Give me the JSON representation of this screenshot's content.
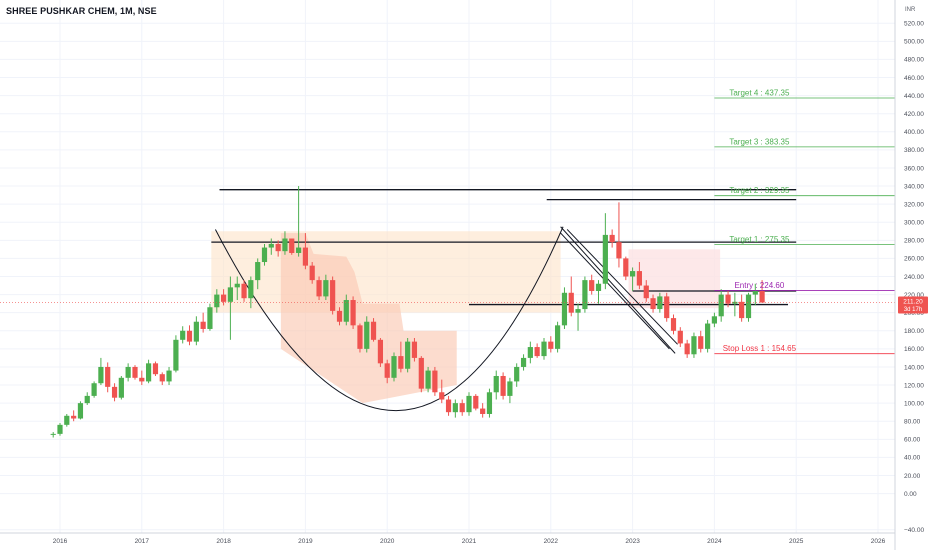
{
  "header": {
    "title": "SHREE PUSHKAR CHEM, 1M, NSE",
    "currency": "INR"
  },
  "chart_data": {
    "type": "candlestick",
    "title": "SHREE PUSHKAR CHEM, 1M, NSE",
    "ylim": [
      -48,
      528
    ],
    "xlim": [
      2015.6,
      2026.35
    ],
    "y_ticks": [
      "520.00",
      "500.00",
      "480.00",
      "460.00",
      "440.00",
      "420.00",
      "400.00",
      "380.00",
      "360.00",
      "340.00",
      "320.00",
      "300.00",
      "280.00",
      "260.00",
      "240.00",
      "220.00",
      "200.00",
      "180.00",
      "160.00",
      "140.00",
      "120.00",
      "100.00",
      "80.00",
      "60.00",
      "40.00",
      "20.00",
      "0.00",
      "−40.00"
    ],
    "x_ticks": [
      "2016",
      "2017",
      "2018",
      "2019",
      "2020",
      "2021",
      "2022",
      "2023",
      "2024",
      "2025",
      "2026"
    ],
    "last_price": {
      "price_label": "211.20",
      "countdown": "3d 17h",
      "value": 211.2
    },
    "levels": [
      {
        "label": "Target 4 : 437.35",
        "value": 437.35
      },
      {
        "label": "Target 3 : 383.35",
        "value": 383.35
      },
      {
        "label": "Target 2 : 329.35",
        "value": 329.35
      },
      {
        "label": "Target 1 : 275.35",
        "value": 275.35
      },
      {
        "label": "Entry : 224.60",
        "value": 224.6
      },
      {
        "label": "Stop Loss 1 : 154.65",
        "value": 154.65
      }
    ],
    "candles": [
      [
        2015.917,
        65,
        68,
        62,
        66
      ],
      [
        2016.0,
        66,
        78,
        64,
        76
      ],
      [
        2016.083,
        76,
        88,
        74,
        86
      ],
      [
        2016.167,
        86,
        92,
        80,
        83
      ],
      [
        2016.25,
        83,
        102,
        82,
        100
      ],
      [
        2016.333,
        100,
        112,
        98,
        108
      ],
      [
        2016.417,
        108,
        124,
        106,
        122
      ],
      [
        2016.5,
        122,
        150,
        120,
        140
      ],
      [
        2016.583,
        140,
        145,
        112,
        118
      ],
      [
        2016.667,
        118,
        122,
        102,
        106
      ],
      [
        2016.75,
        106,
        130,
        104,
        128
      ],
      [
        2016.833,
        128,
        144,
        124,
        140
      ],
      [
        2016.917,
        140,
        142,
        126,
        128
      ],
      [
        2017.0,
        128,
        136,
        120,
        124
      ],
      [
        2017.083,
        124,
        148,
        122,
        144
      ],
      [
        2017.167,
        144,
        146,
        130,
        132
      ],
      [
        2017.25,
        132,
        134,
        120,
        124
      ],
      [
        2017.333,
        124,
        140,
        120,
        136
      ],
      [
        2017.417,
        136,
        175,
        134,
        170
      ],
      [
        2017.5,
        170,
        185,
        166,
        180
      ],
      [
        2017.583,
        180,
        186,
        164,
        168
      ],
      [
        2017.667,
        168,
        196,
        164,
        190
      ],
      [
        2017.75,
        190,
        200,
        178,
        182
      ],
      [
        2017.833,
        182,
        210,
        180,
        206
      ],
      [
        2017.917,
        206,
        226,
        200,
        220
      ],
      [
        2018.0,
        220,
        226,
        208,
        212
      ],
      [
        2018.083,
        212,
        240,
        170,
        228
      ],
      [
        2018.167,
        228,
        240,
        214,
        232
      ],
      [
        2018.25,
        232,
        236,
        212,
        216
      ],
      [
        2018.333,
        216,
        240,
        205,
        236
      ],
      [
        2018.417,
        236,
        260,
        226,
        256
      ],
      [
        2018.5,
        256,
        276,
        252,
        272
      ],
      [
        2018.583,
        272,
        282,
        264,
        276
      ],
      [
        2018.667,
        276,
        280,
        262,
        268
      ],
      [
        2018.75,
        268,
        290,
        264,
        282
      ],
      [
        2018.833,
        282,
        282,
        264,
        266
      ],
      [
        2018.917,
        266,
        340,
        262,
        272
      ],
      [
        2019.0,
        272,
        288,
        248,
        252
      ],
      [
        2019.083,
        252,
        256,
        232,
        236
      ],
      [
        2019.167,
        236,
        240,
        214,
        218
      ],
      [
        2019.25,
        218,
        242,
        214,
        236
      ],
      [
        2019.333,
        236,
        240,
        198,
        202
      ],
      [
        2019.417,
        202,
        206,
        186,
        190
      ],
      [
        2019.5,
        190,
        220,
        186,
        214
      ],
      [
        2019.583,
        214,
        218,
        182,
        186
      ],
      [
        2019.667,
        186,
        188,
        156,
        160
      ],
      [
        2019.75,
        160,
        196,
        156,
        190
      ],
      [
        2019.833,
        190,
        194,
        168,
        170
      ],
      [
        2019.917,
        170,
        172,
        140,
        144
      ],
      [
        2020.0,
        144,
        148,
        122,
        128
      ],
      [
        2020.083,
        128,
        156,
        124,
        152
      ],
      [
        2020.167,
        152,
        168,
        134,
        138
      ],
      [
        2020.25,
        138,
        172,
        134,
        168
      ],
      [
        2020.333,
        168,
        172,
        146,
        150
      ],
      [
        2020.417,
        150,
        152,
        112,
        116
      ],
      [
        2020.5,
        116,
        140,
        112,
        136
      ],
      [
        2020.583,
        136,
        140,
        108,
        112
      ],
      [
        2020.667,
        112,
        126,
        100,
        104
      ],
      [
        2020.75,
        104,
        108,
        86,
        90
      ],
      [
        2020.833,
        90,
        104,
        84,
        100
      ],
      [
        2020.917,
        100,
        104,
        86,
        90
      ],
      [
        2021.0,
        90,
        112,
        86,
        108
      ],
      [
        2021.083,
        108,
        110,
        92,
        94
      ],
      [
        2021.167,
        94,
        100,
        84,
        88
      ],
      [
        2021.25,
        88,
        116,
        84,
        112
      ],
      [
        2021.333,
        112,
        136,
        104,
        130
      ],
      [
        2021.417,
        130,
        134,
        104,
        108
      ],
      [
        2021.5,
        108,
        128,
        100,
        124
      ],
      [
        2021.583,
        124,
        144,
        118,
        140
      ],
      [
        2021.667,
        140,
        154,
        136,
        150
      ],
      [
        2021.75,
        150,
        168,
        144,
        162
      ],
      [
        2021.833,
        162,
        166,
        150,
        152
      ],
      [
        2021.917,
        152,
        172,
        148,
        168
      ],
      [
        2022.0,
        168,
        174,
        156,
        160
      ],
      [
        2022.083,
        160,
        190,
        156,
        186
      ],
      [
        2022.167,
        186,
        228,
        182,
        222
      ],
      [
        2022.25,
        222,
        240,
        196,
        200
      ],
      [
        2022.333,
        200,
        210,
        180,
        204
      ],
      [
        2022.417,
        204,
        240,
        200,
        236
      ],
      [
        2022.5,
        236,
        242,
        220,
        224
      ],
      [
        2022.583,
        224,
        236,
        210,
        232
      ],
      [
        2022.667,
        232,
        310,
        226,
        286
      ],
      [
        2022.75,
        286,
        292,
        272,
        278
      ],
      [
        2022.833,
        278,
        322,
        250,
        260
      ],
      [
        2022.917,
        260,
        262,
        236,
        240
      ],
      [
        2023.0,
        240,
        250,
        224,
        246
      ],
      [
        2023.083,
        246,
        256,
        226,
        230
      ],
      [
        2023.167,
        230,
        236,
        212,
        216
      ],
      [
        2023.25,
        216,
        220,
        200,
        204
      ],
      [
        2023.333,
        204,
        222,
        200,
        218
      ],
      [
        2023.417,
        218,
        222,
        190,
        194
      ],
      [
        2023.5,
        194,
        198,
        176,
        180
      ],
      [
        2023.583,
        180,
        184,
        162,
        166
      ],
      [
        2023.667,
        166,
        170,
        150,
        154
      ],
      [
        2023.75,
        154,
        178,
        150,
        174
      ],
      [
        2023.833,
        174,
        180,
        156,
        160
      ],
      [
        2023.917,
        160,
        192,
        156,
        188
      ],
      [
        2024.0,
        188,
        200,
        184,
        196
      ],
      [
        2024.083,
        196,
        226,
        190,
        220
      ],
      [
        2024.167,
        220,
        224,
        206,
        210
      ],
      [
        2024.25,
        210,
        222,
        196,
        212
      ],
      [
        2024.333,
        212,
        220,
        190,
        194
      ],
      [
        2024.417,
        194,
        222,
        190,
        220
      ],
      [
        2024.5,
        220,
        232,
        208,
        224
      ],
      [
        2024.583,
        224,
        236,
        216,
        211.2
      ]
    ]
  }
}
